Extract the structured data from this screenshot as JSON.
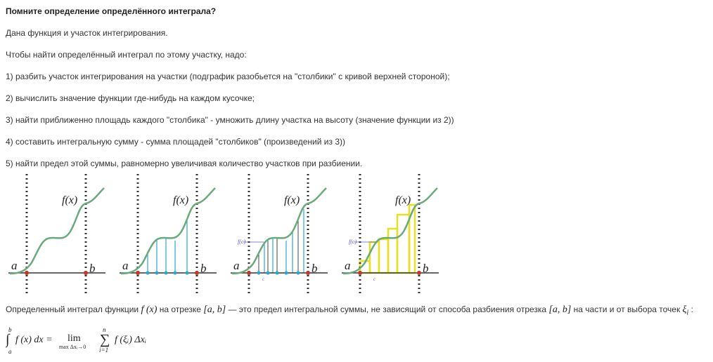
{
  "title": "Помните определение определённого интеграла?",
  "paragraphs": [
    "Дана функция и участок интегрирования.",
    "Чтобы найти определённый интеграл по этому участку, надо:",
    "1) разбить участок интегрирования на участки (подграфик разобьется на \"столбики\" с кривой верхней стороной);",
    "2) вычислить значение функции где-нибудь на каждом кусочке;",
    "3) найти приближенно площадь каждого \"столбика\"  - умножить длину участка на высоту (значение функции из 2))",
    "4) составить интегральную сумму - сумма площадей \"столбиков\" (произведений из 3))",
    "5) найти предел этой суммы, равномерно увеличивая количество участков при разбиении."
  ],
  "figures": {
    "func_label": "f(x)",
    "a_label": "a",
    "b_label": "b",
    "fc_label": "f(c)",
    "c_label": "c",
    "curve_color": "#6aaa7a",
    "partition_color": "#29a6d6",
    "rect_color": "#e8e01e",
    "bound_color": "#c0392b",
    "sample_color": "#5a5ad0"
  },
  "definition": {
    "text1": "Определенный интеграл функции ",
    "fx": "f (x)",
    "text2": "  на отрезке ",
    "ab": "[a, b]",
    "text3": " — это предел интегральной суммы, не зависящий от способа разбиения отрезка  ",
    "ab2": "[a, b]",
    "text4": " на части и от выбора точек ",
    "xi": "ξ",
    "xi_sub": "i",
    "text5": " :"
  },
  "formula": {
    "upper": "b",
    "lower": "a",
    "integrand": "f (x) dx =",
    "lim": "lim",
    "lim_sub": "max Δxᵢ→0",
    "sum_top": "n",
    "sum_bottom": "i=1",
    "term": "f (ξᵢ) Δxᵢ"
  }
}
